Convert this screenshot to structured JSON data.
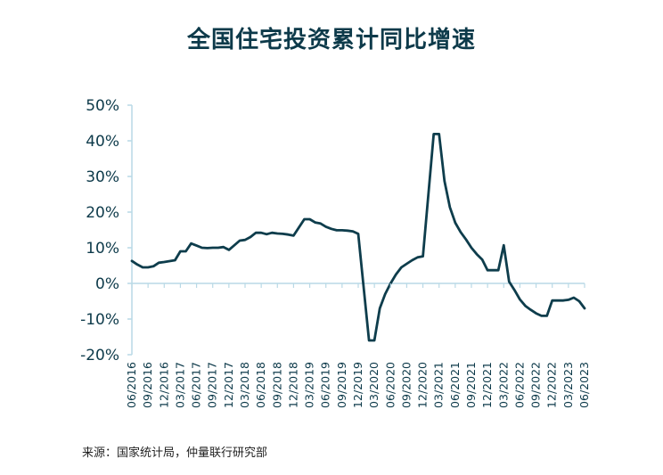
{
  "page": {
    "title": "全国住宅投资累计同比增速",
    "source": "来源：国家统计局，仲量联行研究部"
  },
  "colors": {
    "line": "#0e3d4c",
    "axis": "#b9d9e6",
    "text": "#0d3a4a"
  },
  "chart_data": {
    "type": "line",
    "title": "全国住宅投资累计同比增速",
    "xlabel": "",
    "ylabel": "",
    "ylim": [
      -20,
      50
    ],
    "y_ticks": [
      50,
      40,
      30,
      20,
      10,
      0,
      -10,
      -20
    ],
    "y_tick_labels": [
      "50%",
      "40%",
      "30%",
      "20%",
      "10%",
      "0%",
      "-10%",
      "-20%"
    ],
    "x_tick_labels": [
      "06/2016",
      "09/2016",
      "12/2016",
      "03/2017",
      "06/2017",
      "09/2017",
      "12/2017",
      "03/2018",
      "06/2018",
      "09/2018",
      "12/2018",
      "03/2019",
      "06/2019",
      "09/2019",
      "12/2019",
      "03/2020",
      "06/2020",
      "09/2020",
      "12/2020",
      "03/2021",
      "06/2021",
      "09/2021",
      "12/2021",
      "03/2022",
      "06/2022",
      "09/2022",
      "12/2022",
      "03/2023",
      "06/2023"
    ],
    "grid": false,
    "legend": "none",
    "series": [
      {
        "name": "",
        "x": [
          "06/2016",
          "07/2016",
          "08/2016",
          "09/2016",
          "10/2016",
          "11/2016",
          "12/2016",
          "02/2017",
          "03/2017",
          "04/2017",
          "05/2017",
          "06/2017",
          "07/2017",
          "08/2017",
          "09/2017",
          "10/2017",
          "11/2017",
          "12/2017",
          "02/2018",
          "03/2018",
          "04/2018",
          "05/2018",
          "06/2018",
          "07/2018",
          "08/2018",
          "09/2018",
          "10/2018",
          "11/2018",
          "12/2018",
          "02/2019",
          "03/2019",
          "04/2019",
          "05/2019",
          "06/2019",
          "07/2019",
          "08/2019",
          "09/2019",
          "10/2019",
          "11/2019",
          "12/2019",
          "02/2020",
          "03/2020",
          "04/2020",
          "05/2020",
          "06/2020",
          "07/2020",
          "08/2020",
          "09/2020",
          "10/2020",
          "11/2020",
          "12/2020",
          "02/2021",
          "03/2021",
          "04/2021",
          "05/2021",
          "06/2021",
          "07/2021",
          "08/2021",
          "09/2021",
          "10/2021",
          "11/2021",
          "12/2021",
          "02/2022",
          "03/2022",
          "04/2022",
          "05/2022",
          "06/2022",
          "07/2022",
          "08/2022",
          "09/2022",
          "10/2022",
          "11/2022",
          "12/2022",
          "02/2023",
          "03/2023",
          "04/2023",
          "05/2023",
          "06/2023"
        ],
        "values": [
          6.3,
          5.3,
          4.5,
          4.5,
          4.8,
          5.8,
          6.0,
          6.5,
          9.0,
          9.0,
          11.2,
          10.6,
          10.0,
          9.9,
          10.0,
          10.0,
          10.2,
          9.4,
          12.0,
          12.2,
          13.0,
          14.2,
          14.2,
          13.8,
          14.2,
          14.0,
          13.9,
          13.7,
          13.4,
          18.0,
          18.0,
          17.1,
          16.8,
          15.9,
          15.3,
          14.9,
          14.9,
          14.8,
          14.6,
          13.9,
          -16.0,
          -16.0,
          -7.0,
          -3.0,
          0.0,
          2.5,
          4.5,
          5.5,
          6.5,
          7.3,
          7.6,
          41.9,
          41.9,
          28.7,
          21.4,
          17.0,
          14.4,
          12.3,
          10.0,
          8.2,
          6.7,
          3.7,
          3.7,
          10.7,
          0.5,
          -1.9,
          -4.5,
          -6.3,
          -7.4,
          -8.4,
          -9.1,
          -9.1,
          -4.8,
          -4.8,
          -4.6,
          -4.0,
          -5.0,
          -7.0
        ]
      }
    ]
  }
}
